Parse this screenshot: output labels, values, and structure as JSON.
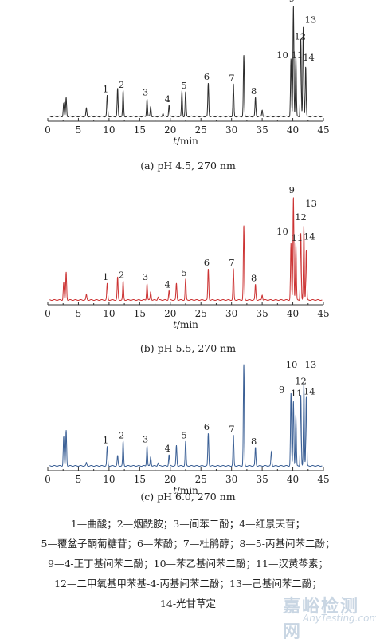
{
  "chart_data": [
    {
      "type": "line",
      "caption": "(a) pH 4.5, 270 nm",
      "xlabel": "t/min",
      "xlim": [
        0,
        45
      ],
      "xticks": [
        "0",
        "5",
        "10",
        "15",
        "20",
        "25",
        "30",
        "35",
        "40",
        "45"
      ],
      "color": "#2b2b2b",
      "peaks": [
        {
          "x": 2.6,
          "h": 0.12
        },
        {
          "x": 3.0,
          "h": 0.17
        },
        {
          "x": 6.3,
          "h": 0.07
        },
        {
          "x": 9.7,
          "h": 0.19,
          "label": "1"
        },
        {
          "x": 11.4,
          "h": 0.25
        },
        {
          "x": 12.3,
          "h": 0.23,
          "label": "2"
        },
        {
          "x": 16.2,
          "h": 0.16,
          "label": "3"
        },
        {
          "x": 16.8,
          "h": 0.09
        },
        {
          "x": 18.8,
          "h": 0.03
        },
        {
          "x": 19.8,
          "h": 0.1,
          "label": "4"
        },
        {
          "x": 21.9,
          "h": 0.23
        },
        {
          "x": 22.5,
          "h": 0.22,
          "label": "5"
        },
        {
          "x": 26.2,
          "h": 0.3,
          "label": "6"
        },
        {
          "x": 30.3,
          "h": 0.29,
          "label": "7"
        },
        {
          "x": 32.0,
          "h": 0.55
        },
        {
          "x": 33.9,
          "h": 0.17,
          "label": "8"
        },
        {
          "x": 35.0,
          "h": 0.06
        },
        {
          "x": 39.7,
          "h": 0.52
        },
        {
          "x": 40.1,
          "h": 1.0,
          "label": "9"
        },
        {
          "x": 40.5,
          "h": 0.55
        },
        {
          "x": 41.3,
          "h": 0.7
        },
        {
          "x": 41.7,
          "h": 0.8
        },
        {
          "x": 42.1,
          "h": 0.45
        }
      ],
      "peak_labels_high": [
        {
          "text": "10",
          "x": 38.3,
          "y": 0.52
        },
        {
          "text": "11",
          "x": 40.7,
          "y": 0.52
        },
        {
          "text": "12",
          "x": 41.2,
          "y": 0.69
        },
        {
          "text": "13",
          "x": 42.9,
          "y": 0.84
        },
        {
          "text": "14",
          "x": 42.6,
          "y": 0.5
        }
      ]
    },
    {
      "type": "line",
      "caption": "(b) pH 5.5, 270 nm",
      "xlabel": "t/min",
      "xlim": [
        0,
        45
      ],
      "xticks": [
        "0",
        "5",
        "10",
        "15",
        "20",
        "25",
        "30",
        "35",
        "40",
        "45"
      ],
      "color": "#cc3333",
      "peaks": [
        {
          "x": 2.6,
          "h": 0.17
        },
        {
          "x": 3.0,
          "h": 0.27
        },
        {
          "x": 6.3,
          "h": 0.05
        },
        {
          "x": 9.7,
          "h": 0.16,
          "label": "1"
        },
        {
          "x": 11.4,
          "h": 0.22
        },
        {
          "x": 12.3,
          "h": 0.18,
          "label": "2"
        },
        {
          "x": 16.2,
          "h": 0.16,
          "label": "3"
        },
        {
          "x": 16.8,
          "h": 0.08
        },
        {
          "x": 18.0,
          "h": 0.03
        },
        {
          "x": 19.8,
          "h": 0.09,
          "label": "4"
        },
        {
          "x": 21.0,
          "h": 0.16
        },
        {
          "x": 22.5,
          "h": 0.2,
          "label": "5"
        },
        {
          "x": 26.2,
          "h": 0.3,
          "label": "6"
        },
        {
          "x": 30.3,
          "h": 0.3,
          "label": "7"
        },
        {
          "x": 32.0,
          "h": 0.72
        },
        {
          "x": 33.9,
          "h": 0.15,
          "label": "8"
        },
        {
          "x": 35.0,
          "h": 0.05
        },
        {
          "x": 39.7,
          "h": 0.55
        },
        {
          "x": 40.1,
          "h": 1.0,
          "label": "9"
        },
        {
          "x": 40.5,
          "h": 0.55
        },
        {
          "x": 41.3,
          "h": 0.65
        },
        {
          "x": 41.8,
          "h": 0.72
        },
        {
          "x": 42.2,
          "h": 0.48
        }
      ],
      "peak_labels_high": [
        {
          "text": "10",
          "x": 38.3,
          "y": 0.63
        },
        {
          "text": "11",
          "x": 40.7,
          "y": 0.57
        },
        {
          "text": "12",
          "x": 41.3,
          "y": 0.77
        },
        {
          "text": "13",
          "x": 43.0,
          "y": 0.9
        },
        {
          "text": "14",
          "x": 42.7,
          "y": 0.58
        }
      ]
    },
    {
      "type": "line",
      "caption": "(c) pH 6.0, 270 nm",
      "xlabel": "t/min",
      "xlim": [
        0,
        45
      ],
      "xticks": [
        "0",
        "5",
        "10",
        "15",
        "20",
        "25",
        "30",
        "35",
        "40",
        "45"
      ],
      "color": "#3a5f95",
      "peaks": [
        {
          "x": 2.6,
          "h": 0.29
        },
        {
          "x": 3.0,
          "h": 0.35
        },
        {
          "x": 6.3,
          "h": 0.03
        },
        {
          "x": 9.7,
          "h": 0.19,
          "label": "1"
        },
        {
          "x": 11.4,
          "h": 0.1
        },
        {
          "x": 12.3,
          "h": 0.24,
          "label": "2"
        },
        {
          "x": 16.2,
          "h": 0.2,
          "label": "3"
        },
        {
          "x": 16.8,
          "h": 0.09
        },
        {
          "x": 18.0,
          "h": 0.03
        },
        {
          "x": 19.8,
          "h": 0.11,
          "label": "4"
        },
        {
          "x": 21.0,
          "h": 0.2
        },
        {
          "x": 22.5,
          "h": 0.24,
          "label": "5"
        },
        {
          "x": 26.2,
          "h": 0.32,
          "label": "6"
        },
        {
          "x": 30.3,
          "h": 0.3,
          "label": "7"
        },
        {
          "x": 32.0,
          "h": 1.0
        },
        {
          "x": 33.9,
          "h": 0.18,
          "label": "8"
        },
        {
          "x": 36.5,
          "h": 0.14
        },
        {
          "x": 39.7,
          "h": 0.72
        },
        {
          "x": 40.1,
          "h": 0.64
        },
        {
          "x": 40.5,
          "h": 0.5
        },
        {
          "x": 41.3,
          "h": 0.7
        },
        {
          "x": 41.8,
          "h": 0.82
        },
        {
          "x": 42.2,
          "h": 0.68
        }
      ],
      "peak_labels_high": [
        {
          "text": "9",
          "x": 38.2,
          "y": 0.72
        },
        {
          "text": "10",
          "x": 39.8,
          "y": 0.96
        },
        {
          "text": "11",
          "x": 40.6,
          "y": 0.68
        },
        {
          "text": "12",
          "x": 41.3,
          "y": 0.8
        },
        {
          "text": "13",
          "x": 42.9,
          "y": 0.96
        },
        {
          "text": "14",
          "x": 42.7,
          "y": 0.7
        }
      ]
    }
  ],
  "legend": {
    "line1": "1—曲酸；2—烟酰胺；3—间苯二酚；4—红景天苷；",
    "line2": "5—覆盆子酮葡糖苷；6—苯酚；7—杜鹃醇；8—5-丙基间苯二酚；",
    "line3": "9—4-正丁基间苯二酚；10—苯乙基间苯二酚；11—汉黄芩素；",
    "line4": "12—二甲氧基甲苯基-4-丙基间苯二酚；13—己基间苯二酚；",
    "line5": "14-光甘草定"
  },
  "watermark": {
    "text1": "嘉峪检测网",
    "text2": "AnyTesting.com"
  }
}
